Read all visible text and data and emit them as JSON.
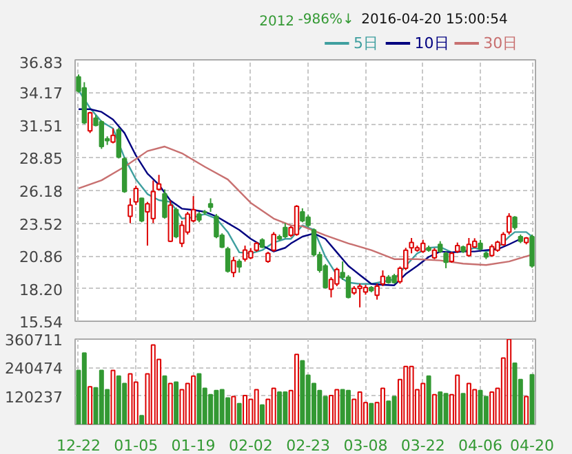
{
  "chart_data": [
    {
      "type": "candlestick",
      "title": "2016-04-20 15:00:54",
      "annotations": [
        "2012",
        "-986%↓"
      ],
      "ohlc": [
        [
          35.45,
          35.64,
          34.17,
          34.28
        ],
        [
          34.54,
          35.01,
          31.6,
          31.71
        ],
        [
          31.05,
          32.6,
          30.87,
          32.52
        ],
        [
          32.08,
          32.34,
          31.42,
          31.49
        ],
        [
          31.79,
          31.9,
          29.58,
          29.77
        ],
        [
          30.4,
          30.6,
          29.9,
          30.25
        ],
        [
          30.14,
          31.24,
          30.03,
          30.68
        ],
        [
          31.13,
          31.3,
          28.8,
          28.92
        ],
        [
          28.78,
          28.9,
          26.0,
          26.1
        ],
        [
          24.08,
          25.55,
          23.53,
          25.0
        ],
        [
          25.26,
          26.58,
          25.0,
          26.36
        ],
        [
          25.55,
          25.6,
          23.6,
          23.72
        ],
        [
          24.45,
          25.26,
          21.7,
          25.11
        ],
        [
          23.9,
          27.0,
          23.53,
          26.1
        ],
        [
          26.28,
          27.46,
          26.2,
          26.72
        ],
        [
          25.92,
          26.28,
          23.9,
          24.01
        ],
        [
          22.06,
          25.37,
          22.0,
          25.0
        ],
        [
          24.63,
          24.8,
          22.3,
          22.43
        ],
        [
          21.88,
          23.72,
          21.58,
          23.35
        ],
        [
          22.8,
          24.45,
          22.6,
          24.27
        ],
        [
          23.72,
          25.73,
          23.6,
          24.63
        ],
        [
          24.27,
          24.45,
          23.6,
          23.79
        ],
        [
          24.45,
          24.6,
          24.2,
          24.4
        ],
        [
          25.11,
          25.55,
          24.45,
          24.82
        ],
        [
          24.08,
          24.27,
          22.3,
          22.43
        ],
        [
          22.54,
          22.7,
          21.5,
          21.58
        ],
        [
          21.44,
          21.6,
          19.5,
          19.61
        ],
        [
          19.5,
          20.78,
          19.13,
          20.49
        ],
        [
          20.41,
          20.6,
          19.5,
          19.97
        ],
        [
          20.6,
          21.7,
          20.4,
          21.34
        ],
        [
          20.71,
          21.5,
          20.6,
          21.22
        ],
        [
          21.33,
          22.0,
          21.2,
          21.88
        ],
        [
          22.17,
          22.3,
          21.5,
          21.58
        ],
        [
          20.41,
          21.2,
          20.3,
          21.07
        ],
        [
          21.33,
          22.8,
          21.2,
          22.61
        ],
        [
          22.43,
          22.6,
          22.1,
          22.25
        ],
        [
          23.17,
          23.53,
          22.3,
          22.43
        ],
        [
          22.54,
          23.3,
          22.4,
          23.17
        ],
        [
          22.61,
          25.0,
          22.5,
          24.89
        ],
        [
          24.45,
          24.74,
          23.6,
          23.72
        ],
        [
          24.01,
          24.2,
          23.2,
          23.35
        ],
        [
          22.98,
          23.1,
          20.8,
          20.96
        ],
        [
          20.96,
          21.2,
          19.5,
          19.68
        ],
        [
          20.05,
          20.2,
          18.2,
          18.29
        ],
        [
          18.14,
          19.13,
          17.48,
          18.95
        ],
        [
          18.58,
          19.9,
          18.4,
          19.75
        ],
        [
          19.5,
          20.41,
          18.9,
          19.13
        ],
        [
          19.13,
          19.3,
          17.4,
          17.48
        ],
        [
          17.85,
          18.4,
          17.7,
          18.21
        ],
        [
          18.21,
          18.6,
          16.67,
          18.4
        ],
        [
          17.92,
          18.5,
          17.7,
          18.29
        ],
        [
          18.29,
          18.4,
          17.9,
          18.03
        ],
        [
          17.66,
          18.6,
          17.3,
          18.4
        ],
        [
          18.58,
          19.68,
          18.4,
          19.2
        ],
        [
          19.13,
          19.3,
          18.6,
          18.69
        ],
        [
          19.24,
          19.4,
          18.6,
          18.69
        ],
        [
          18.76,
          20.0,
          18.6,
          19.86
        ],
        [
          19.86,
          21.52,
          19.7,
          21.33
        ],
        [
          21.52,
          22.32,
          21.07,
          21.95
        ],
        [
          21.33,
          21.7,
          21.2,
          21.52
        ],
        [
          21.22,
          22.17,
          21.1,
          21.88
        ],
        [
          21.52,
          21.7,
          21.2,
          21.33
        ],
        [
          20.71,
          21.5,
          20.6,
          21.33
        ],
        [
          21.8,
          22.06,
          21.1,
          21.22
        ],
        [
          21.07,
          21.2,
          19.86,
          20.34
        ],
        [
          20.41,
          21.2,
          20.3,
          21.07
        ],
        [
          21.22,
          21.95,
          21.1,
          21.7
        ],
        [
          21.59,
          21.7,
          21.1,
          21.22
        ],
        [
          20.89,
          22.32,
          20.8,
          21.8
        ],
        [
          21.59,
          22.3,
          21.5,
          22.06
        ],
        [
          21.88,
          22.17,
          21.3,
          21.44
        ],
        [
          21.07,
          21.2,
          20.6,
          20.78
        ],
        [
          20.89,
          21.8,
          20.8,
          21.62
        ],
        [
          21.33,
          22.1,
          21.2,
          21.99
        ],
        [
          21.77,
          22.8,
          21.7,
          22.61
        ],
        [
          22.8,
          24.34,
          22.6,
          24.08
        ],
        [
          24.01,
          24.1,
          23.0,
          23.17
        ],
        [
          22.43,
          22.6,
          21.9,
          22.06
        ],
        [
          21.95,
          22.4,
          21.8,
          22.32
        ],
        [
          22.43,
          22.6,
          19.9,
          20.05
        ]
      ],
      "colors": [
        "#339933",
        "#339933",
        "#dd0000",
        "#339933",
        "#339933",
        "#339933",
        "#dd0000",
        "#339933",
        "#339933",
        "#dd0000",
        "#dd0000",
        "#339933",
        "#dd0000",
        "#dd0000",
        "#dd0000",
        "#339933",
        "#dd0000",
        "#339933",
        "#dd0000",
        "#dd0000",
        "#dd0000",
        "#339933",
        "#339933",
        "#339933",
        "#339933",
        "#339933",
        "#339933",
        "#dd0000",
        "#339933",
        "#dd0000",
        "#dd0000",
        "#dd0000",
        "#339933",
        "#dd0000",
        "#dd0000",
        "#339933",
        "#339933",
        "#dd0000",
        "#dd0000",
        "#339933",
        "#339933",
        "#339933",
        "#339933",
        "#339933",
        "#dd0000",
        "#dd0000",
        "#339933",
        "#339933",
        "#dd0000",
        "#dd0000",
        "#dd0000",
        "#339933",
        "#dd0000",
        "#dd0000",
        "#339933",
        "#339933",
        "#dd0000",
        "#dd0000",
        "#dd0000",
        "#dd0000",
        "#dd0000",
        "#339933",
        "#dd0000",
        "#339933",
        "#339933",
        "#dd0000",
        "#dd0000",
        "#339933",
        "#dd0000",
        "#dd0000",
        "#339933",
        "#339933",
        "#dd0000",
        "#dd0000",
        "#dd0000",
        "#dd0000",
        "#339933",
        "#339933",
        "#dd0000",
        "#339933"
      ],
      "series": [
        {
          "name": "5日",
          "type": "line",
          "color": "#3f9f9f",
          "values": [
            34.35,
            null,
            32.9,
            null,
            31.8,
            null,
            31.24,
            null,
            28.85,
            null,
            27.09,
            null,
            25.9,
            null,
            25.4,
            null,
            25.26,
            null,
            23.9,
            null,
            24.0,
            null,
            24.27,
            null,
            23.9,
            null,
            22.8,
            null,
            21.15,
            null,
            21.07,
            null,
            21.33,
            null,
            21.95,
            null,
            22.25,
            22.25,
            null,
            23.35,
            null,
            22.98,
            null,
            20.78,
            null,
            19.3,
            null,
            18.69,
            null,
            18.58,
            null,
            18.58,
            null,
            18.76,
            null,
            18.95,
            null,
            20.05,
            null,
            21.07,
            null,
            21.52,
            null,
            21.59,
            null,
            21.15,
            null,
            21.22,
            null,
            21.52,
            null,
            21.22,
            null,
            21.52,
            null,
            22.43,
            22.8,
            null,
            22.8,
            22.43
          ]
        },
        {
          "name": "10日",
          "type": "line",
          "color": "#000080",
          "values": [
            32.81,
            null,
            32.81,
            null,
            32.59,
            null,
            31.97,
            null,
            30.87,
            null,
            29.03,
            null,
            27.57,
            null,
            26.65,
            null,
            25.37,
            null,
            24.71,
            null,
            24.6,
            null,
            24.45,
            null,
            24.08,
            null,
            23.53,
            null,
            22.98,
            null,
            22.25,
            null,
            21.7,
            null,
            21.22,
            null,
            21.52,
            21.88,
            null,
            22.43,
            null,
            22.69,
            null,
            22.25,
            null,
            21.15,
            null,
            20.05,
            null,
            19.31,
            null,
            18.58,
            null,
            18.51,
            null,
            18.47,
            null,
            19.39,
            null,
            20.05,
            null,
            20.78,
            null,
            21.22,
            null,
            21.15,
            null,
            21.22,
            null,
            21.22,
            null,
            21.33,
            null,
            21.4,
            null,
            21.8,
            null,
            22.25,
            null,
            null
          ]
        },
        {
          "name": "30日",
          "type": "line",
          "color": "#c87070",
          "values": [
            26.36,
            null,
            null,
            null,
            27.02,
            null,
            null,
            null,
            28.12,
            null,
            null,
            null,
            29.4,
            null,
            null,
            29.77,
            null,
            null,
            29.22,
            null,
            null,
            null,
            28.12,
            null,
            null,
            null,
            27.09,
            null,
            null,
            null,
            25.18,
            null,
            null,
            null,
            23.9,
            null,
            null,
            23.35,
            null,
            23.28,
            null,
            null,
            null,
            22.54,
            null,
            null,
            null,
            21.88,
            null,
            null,
            null,
            21.33,
            null,
            null,
            null,
            20.6,
            null,
            null,
            null,
            20.6,
            null,
            null,
            null,
            20.49,
            null,
            null,
            null,
            20.23,
            null,
            null,
            null,
            20.12,
            null,
            null,
            null,
            20.41,
            null,
            null,
            null,
            20.96
          ]
        }
      ],
      "ylim": [
        15.54,
        36.83
      ],
      "yticks": [
        15.54,
        {
          "value": 18.2,
          "label": "18.20"
        },
        20.86,
        23.52,
        26.18,
        28.85,
        31.51,
        34.17,
        36.83
      ],
      "grid": true,
      "legend": "top right",
      "tick_labels": "y"
    },
    {
      "type": "bar",
      "values": [
        228000,
        302000,
        159000,
        155000,
        228000,
        147000,
        228000,
        204000,
        173000,
        214000,
        179000,
        37000,
        214000,
        336000,
        275000,
        204000,
        173000,
        179000,
        147000,
        173000,
        204000,
        214000,
        153000,
        126000,
        143000,
        147000,
        112000,
        118000,
        88000,
        122000,
        106000,
        147000,
        82000,
        106000,
        153000,
        137000,
        137000,
        143000,
        296000,
        269000,
        208000,
        173000,
        143000,
        118000,
        122000,
        147000,
        147000,
        143000,
        106000,
        137000,
        92000,
        88000,
        92000,
        153000,
        98000,
        118000,
        190000,
        245000,
        245000,
        147000,
        173000,
        204000,
        126000,
        137000,
        130000,
        126000,
        208000,
        130000,
        173000,
        147000,
        143000,
        118000,
        137000,
        153000,
        281000,
        360000,
        259000,
        190000,
        118000,
        210000
      ],
      "colors": [
        "#339933",
        "#339933",
        "#dd0000",
        "#339933",
        "#339933",
        "#339933",
        "#dd0000",
        "#339933",
        "#339933",
        "#dd0000",
        "#dd0000",
        "#339933",
        "#dd0000",
        "#dd0000",
        "#dd0000",
        "#339933",
        "#dd0000",
        "#339933",
        "#dd0000",
        "#dd0000",
        "#dd0000",
        "#339933",
        "#339933",
        "#339933",
        "#339933",
        "#339933",
        "#339933",
        "#dd0000",
        "#339933",
        "#dd0000",
        "#dd0000",
        "#dd0000",
        "#339933",
        "#dd0000",
        "#dd0000",
        "#339933",
        "#339933",
        "#dd0000",
        "#dd0000",
        "#339933",
        "#339933",
        "#339933",
        "#339933",
        "#339933",
        "#dd0000",
        "#dd0000",
        "#339933",
        "#339933",
        "#dd0000",
        "#dd0000",
        "#dd0000",
        "#339933",
        "#dd0000",
        "#dd0000",
        "#339933",
        "#339933",
        "#dd0000",
        "#dd0000",
        "#dd0000",
        "#dd0000",
        "#dd0000",
        "#339933",
        "#dd0000",
        "#339933",
        "#339933",
        "#dd0000",
        "#dd0000",
        "#339933",
        "#dd0000",
        "#dd0000",
        "#339933",
        "#339933",
        "#dd0000",
        "#dd0000",
        "#dd0000",
        "#dd0000",
        "#339933",
        "#339933",
        "#dd0000",
        "#339933"
      ],
      "categories": [
        "12-22",
        null,
        null,
        null,
        null,
        null,
        null,
        null,
        null,
        null,
        "01-05",
        null,
        null,
        null,
        null,
        null,
        null,
        null,
        null,
        null,
        "01-19",
        null,
        null,
        null,
        null,
        null,
        null,
        null,
        null,
        null,
        "02-02",
        null,
        null,
        null,
        null,
        null,
        null,
        null,
        null,
        null,
        "02-23",
        null,
        null,
        null,
        null,
        null,
        null,
        null,
        null,
        null,
        "03-08",
        null,
        null,
        null,
        null,
        null,
        null,
        null,
        null,
        null,
        "03-22",
        null,
        null,
        null,
        null,
        null,
        null,
        null,
        null,
        null,
        "04-06",
        null,
        null,
        null,
        null,
        null,
        null,
        null,
        null,
        "04-20"
      ],
      "ylim": [
        0,
        360711
      ],
      "yticks": [
        120237,
        240474,
        360711
      ],
      "grid": true
    }
  ]
}
